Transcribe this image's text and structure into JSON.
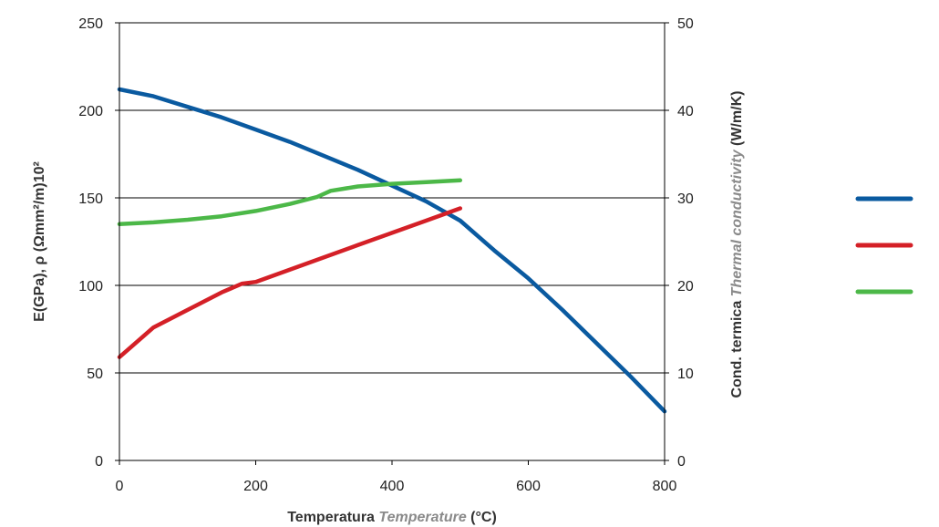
{
  "chart_data": {
    "type": "line",
    "title": "",
    "xlabel": {
      "part1": "Temperatura ",
      "part2": "Temperature",
      "part3": " (°C)"
    },
    "ylabel_left": "E(GPa), ρ (Ωmm²/m)10²",
    "ylabel_right": {
      "part1": "Cond. termica ",
      "part2": "Thermal conductivity",
      "part3": " (W/m/K)"
    },
    "xlim": [
      0,
      800
    ],
    "ylim_left": [
      0,
      250
    ],
    "ylim_right": [
      0,
      50
    ],
    "xticks": [
      "0",
      "200",
      "400",
      "600",
      "800"
    ],
    "yticks_left": [
      "0",
      "50",
      "100",
      "150",
      "200",
      "250"
    ],
    "yticks_right": [
      "0",
      "10",
      "20",
      "30",
      "40",
      "50"
    ],
    "grid": "horizontal",
    "legend_placement": "right",
    "series": [
      {
        "axis": "left",
        "color": "#0a5aa0",
        "points": [
          [
            0,
            212
          ],
          [
            50,
            208
          ],
          [
            100,
            202
          ],
          [
            150,
            196
          ],
          [
            200,
            189
          ],
          [
            250,
            182
          ],
          [
            300,
            174
          ],
          [
            350,
            166
          ],
          [
            400,
            157
          ],
          [
            450,
            148
          ],
          [
            500,
            137
          ],
          [
            550,
            120
          ],
          [
            600,
            104
          ],
          [
            650,
            86
          ],
          [
            700,
            67
          ],
          [
            750,
            48
          ],
          [
            800,
            28
          ]
        ]
      },
      {
        "axis": "left",
        "color": "#d42027",
        "points": [
          [
            0,
            59
          ],
          [
            50,
            76
          ],
          [
            100,
            86
          ],
          [
            150,
            96
          ],
          [
            180,
            101
          ],
          [
            200,
            102
          ],
          [
            250,
            109
          ],
          [
            300,
            116
          ],
          [
            350,
            123
          ],
          [
            400,
            130
          ],
          [
            450,
            137
          ],
          [
            500,
            144
          ]
        ]
      },
      {
        "axis": "right",
        "color": "#4cb848",
        "points": [
          [
            0,
            27.0
          ],
          [
            50,
            27.2
          ],
          [
            100,
            27.5
          ],
          [
            150,
            27.9
          ],
          [
            200,
            28.5
          ],
          [
            250,
            29.3
          ],
          [
            290,
            30.1
          ],
          [
            310,
            30.8
          ],
          [
            350,
            31.3
          ],
          [
            400,
            31.6
          ],
          [
            450,
            31.8
          ],
          [
            500,
            32.0
          ]
        ]
      }
    ]
  }
}
